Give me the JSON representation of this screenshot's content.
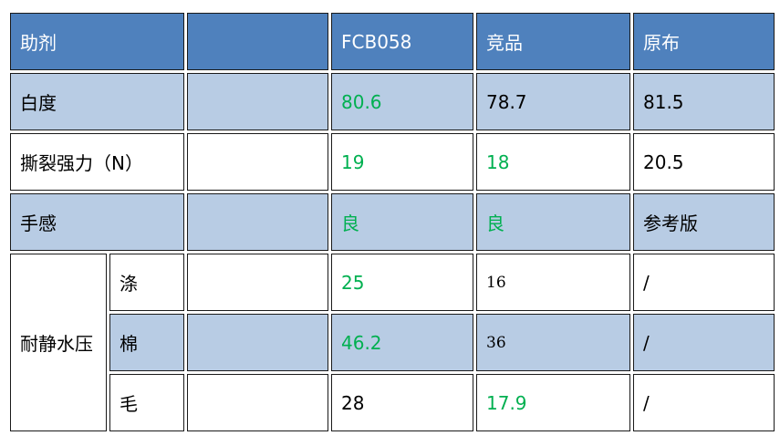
{
  "table": {
    "header": {
      "label": "助剂",
      "columns": [
        "FCB058",
        "竞品",
        "原布"
      ]
    },
    "rows": [
      {
        "label": "白度",
        "values": [
          80.6,
          78.7,
          81.5
        ]
      },
      {
        "label": "撕裂强力（N）",
        "values": [
          19,
          18,
          20.5
        ]
      },
      {
        "label": "手感",
        "values": [
          "良",
          "良",
          "参考版"
        ]
      }
    ],
    "group": {
      "label": "耐静水压",
      "rows": [
        {
          "label": "涤",
          "values": [
            25,
            16,
            "/"
          ]
        },
        {
          "label": "棉",
          "values": [
            46.2,
            36,
            "/"
          ]
        },
        {
          "label": "毛",
          "values": [
            28,
            17.9,
            "/"
          ]
        }
      ]
    }
  }
}
